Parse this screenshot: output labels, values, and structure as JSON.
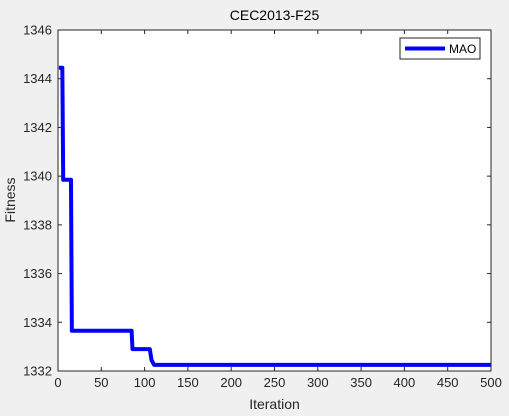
{
  "chart_data": {
    "type": "line",
    "title": "CEC2013-F25",
    "xlabel": "Iteration",
    "ylabel": "Fitness",
    "xlim": [
      0,
      500
    ],
    "ylim": [
      1332,
      1346
    ],
    "xticks": [
      0,
      50,
      100,
      150,
      200,
      250,
      300,
      350,
      400,
      450,
      500
    ],
    "yticks": [
      1332,
      1334,
      1336,
      1338,
      1340,
      1342,
      1344,
      1346
    ],
    "grid": false,
    "legend_position": "top-right",
    "series": [
      {
        "name": "MAO",
        "color": "#0000ff",
        "x": [
          1,
          5,
          6,
          15,
          16,
          85,
          86,
          106,
          108,
          111,
          500
        ],
        "y": [
          1344.45,
          1344.45,
          1339.85,
          1339.85,
          1333.65,
          1333.65,
          1332.9,
          1332.9,
          1332.45,
          1332.25,
          1332.25
        ]
      }
    ]
  }
}
